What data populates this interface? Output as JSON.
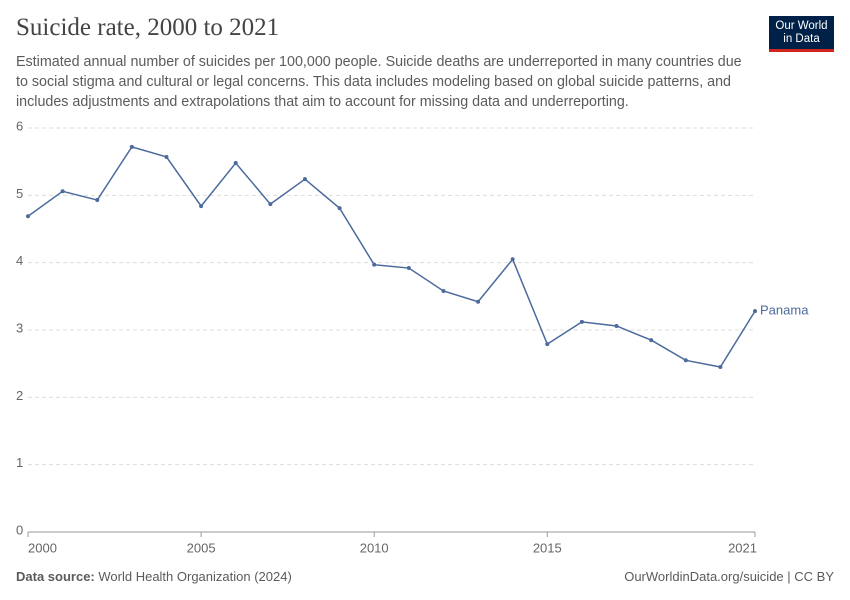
{
  "chart_data": {
    "type": "line",
    "title": "Suicide rate, 2000 to 2021",
    "subtitle": "Estimated annual number of suicides per 100,000 people. Suicide deaths are underreported in many countries due to social stigma and cultural or legal concerns. This data includes modeling based on global suicide patterns, and includes adjustments and extrapolations that aim to account for missing data and underreporting.",
    "logo": [
      "Our World",
      "in Data"
    ],
    "source_label": "Data source:",
    "source": "World Health Organization (2024)",
    "credit": "OurWorldinData.org/suicide | CC BY",
    "x": [
      2000,
      2001,
      2002,
      2003,
      2004,
      2005,
      2006,
      2007,
      2008,
      2009,
      2010,
      2011,
      2012,
      2013,
      2014,
      2015,
      2016,
      2017,
      2018,
      2019,
      2020,
      2021
    ],
    "series": [
      {
        "name": "Panama",
        "color": "#4c6a9c",
        "values": [
          4.69,
          5.06,
          4.93,
          5.72,
          5.57,
          4.84,
          5.48,
          4.87,
          5.24,
          4.81,
          3.97,
          3.92,
          3.58,
          3.42,
          4.05,
          2.79,
          3.12,
          3.06,
          2.85,
          2.55,
          2.45,
          3.28
        ]
      }
    ],
    "xlim": [
      2000,
      2021
    ],
    "xticks": [
      2000,
      2005,
      2010,
      2015,
      2021
    ],
    "ylim": [
      0,
      6
    ],
    "yticks": [
      0,
      1,
      2,
      3,
      4,
      5,
      6
    ],
    "grid": true
  }
}
